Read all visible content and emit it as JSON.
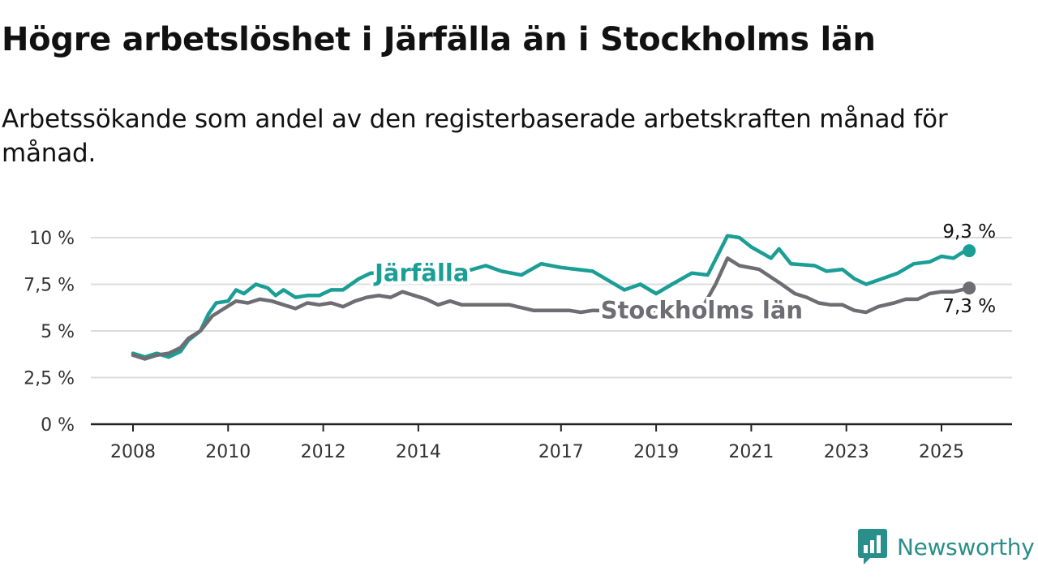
{
  "header": {
    "title": "Högre arbetslöshet i Järfälla än i Stockholms län",
    "subtitle": "Arbetssökande som andel av den registerbaserade arbetskraften månad för månad."
  },
  "brand": {
    "name": "Newsworthy",
    "icon": "newsworthy-logo-icon",
    "color": "#2a8f8a"
  },
  "chart_data": {
    "type": "line",
    "x_type": "date",
    "xlim": [
      "2008-01",
      "2025-12"
    ],
    "ylim": [
      0,
      10
    ],
    "grid": true,
    "legend": "inline labels",
    "yticks": [
      0,
      2.5,
      5,
      7.5,
      10
    ],
    "ytick_labels": [
      "0 %",
      "2,5 %",
      "5 %",
      "7,5 %",
      "10 %"
    ],
    "xticks": [
      "2008-01",
      "2010-01",
      "2012-01",
      "2014-01",
      "2017-01",
      "2019-01",
      "2021-01",
      "2023-01",
      "2025-01"
    ],
    "xtick_labels": [
      "2008",
      "2010",
      "2012",
      "2014",
      "2017",
      "2019",
      "2021",
      "2023",
      "2025"
    ],
    "series": [
      {
        "name": "Järfälla",
        "color": "#1a9e96",
        "end_label": "9,3 %",
        "points": [
          [
            "2008-01",
            3.8
          ],
          [
            "2008-04",
            3.6
          ],
          [
            "2008-07",
            3.8
          ],
          [
            "2008-10",
            3.6
          ],
          [
            "2009-01",
            3.9
          ],
          [
            "2009-03",
            4.5
          ],
          [
            "2009-06",
            5.0
          ],
          [
            "2009-08",
            5.9
          ],
          [
            "2009-10",
            6.5
          ],
          [
            "2010-01",
            6.6
          ],
          [
            "2010-03",
            7.2
          ],
          [
            "2010-05",
            7.0
          ],
          [
            "2010-08",
            7.5
          ],
          [
            "2010-11",
            7.3
          ],
          [
            "2011-01",
            6.9
          ],
          [
            "2011-03",
            7.2
          ],
          [
            "2011-06",
            6.8
          ],
          [
            "2011-09",
            6.9
          ],
          [
            "2011-12",
            6.9
          ],
          [
            "2012-03",
            7.2
          ],
          [
            "2012-06",
            7.2
          ],
          [
            "2012-10",
            7.8
          ],
          [
            "2013-01",
            8.1
          ],
          [
            "2015-01",
            8.2
          ],
          [
            "2015-06",
            8.5
          ],
          [
            "2015-10",
            8.2
          ],
          [
            "2016-03",
            8.0
          ],
          [
            "2016-08",
            8.6
          ],
          [
            "2017-01",
            8.4
          ],
          [
            "2017-05",
            8.3
          ],
          [
            "2017-09",
            8.2
          ],
          [
            "2018-01",
            7.7
          ],
          [
            "2018-05",
            7.2
          ],
          [
            "2018-09",
            7.5
          ],
          [
            "2019-01",
            7.0
          ],
          [
            "2019-05",
            7.5
          ],
          [
            "2019-10",
            8.1
          ],
          [
            "2020-02",
            8.0
          ],
          [
            "2020-07",
            10.1
          ],
          [
            "2020-10",
            10.0
          ],
          [
            "2021-01",
            9.5
          ],
          [
            "2021-06",
            8.9
          ],
          [
            "2021-08",
            9.4
          ],
          [
            "2021-11",
            8.6
          ],
          [
            "2022-05",
            8.5
          ],
          [
            "2022-08",
            8.2
          ],
          [
            "2022-12",
            8.3
          ],
          [
            "2023-03",
            7.8
          ],
          [
            "2023-06",
            7.5
          ],
          [
            "2023-10",
            7.8
          ],
          [
            "2024-02",
            8.1
          ],
          [
            "2024-06",
            8.6
          ],
          [
            "2024-10",
            8.7
          ],
          [
            "2025-01",
            9.0
          ],
          [
            "2025-04",
            8.9
          ],
          [
            "2025-07",
            9.3
          ],
          [
            "2025-08",
            9.3
          ]
        ]
      },
      {
        "name": "Stockholms län",
        "color": "#6e6d73",
        "end_label": "7,3 %",
        "points": [
          [
            "2008-01",
            3.7
          ],
          [
            "2008-04",
            3.5
          ],
          [
            "2008-07",
            3.7
          ],
          [
            "2008-10",
            3.8
          ],
          [
            "2009-01",
            4.1
          ],
          [
            "2009-03",
            4.6
          ],
          [
            "2009-06",
            5.0
          ],
          [
            "2009-09",
            5.8
          ],
          [
            "2009-12",
            6.2
          ],
          [
            "2010-03",
            6.6
          ],
          [
            "2010-06",
            6.5
          ],
          [
            "2010-09",
            6.7
          ],
          [
            "2010-12",
            6.6
          ],
          [
            "2011-03",
            6.4
          ],
          [
            "2011-06",
            6.2
          ],
          [
            "2011-09",
            6.5
          ],
          [
            "2011-12",
            6.4
          ],
          [
            "2012-03",
            6.5
          ],
          [
            "2012-06",
            6.3
          ],
          [
            "2012-09",
            6.6
          ],
          [
            "2012-12",
            6.8
          ],
          [
            "2013-03",
            6.9
          ],
          [
            "2013-06",
            6.8
          ],
          [
            "2013-09",
            7.1
          ],
          [
            "2013-12",
            6.9
          ],
          [
            "2014-03",
            6.7
          ],
          [
            "2014-06",
            6.4
          ],
          [
            "2014-09",
            6.6
          ],
          [
            "2014-12",
            6.4
          ],
          [
            "2015-06",
            6.4
          ],
          [
            "2015-12",
            6.4
          ],
          [
            "2016-06",
            6.1
          ],
          [
            "2016-12",
            6.1
          ],
          [
            "2017-03",
            6.1
          ],
          [
            "2017-06",
            6.0
          ],
          [
            "2017-09",
            6.1
          ],
          [
            "2019-12",
            6.0
          ],
          [
            "2020-04",
            7.5
          ],
          [
            "2020-07",
            8.9
          ],
          [
            "2020-10",
            8.5
          ],
          [
            "2021-03",
            8.3
          ],
          [
            "2021-08",
            7.6
          ],
          [
            "2021-12",
            7.0
          ],
          [
            "2022-03",
            6.8
          ],
          [
            "2022-06",
            6.5
          ],
          [
            "2022-09",
            6.4
          ],
          [
            "2022-12",
            6.4
          ],
          [
            "2023-03",
            6.1
          ],
          [
            "2023-06",
            6.0
          ],
          [
            "2023-09",
            6.3
          ],
          [
            "2024-01",
            6.5
          ],
          [
            "2024-04",
            6.7
          ],
          [
            "2024-07",
            6.7
          ],
          [
            "2024-10",
            7.0
          ],
          [
            "2025-01",
            7.1
          ],
          [
            "2025-04",
            7.1
          ],
          [
            "2025-06",
            7.2
          ],
          [
            "2025-08",
            7.3
          ]
        ]
      }
    ]
  }
}
